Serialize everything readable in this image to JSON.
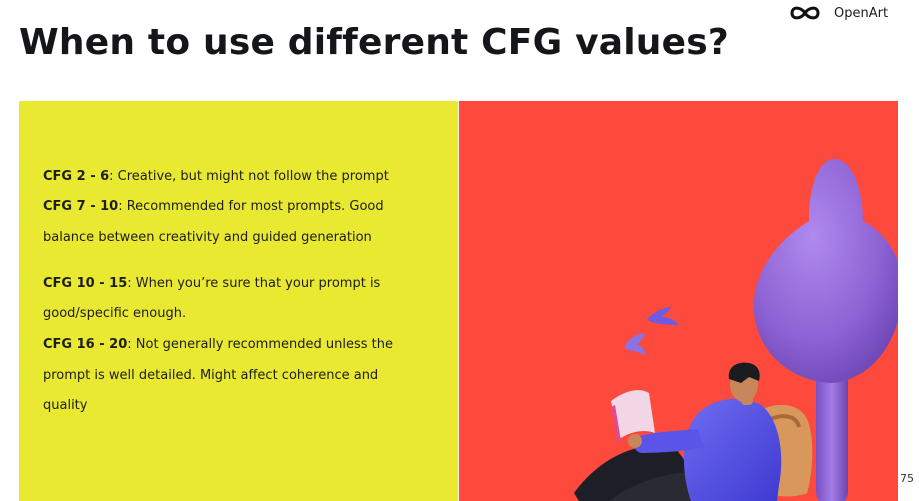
{
  "header": {
    "title": "When to use different CFG values?",
    "brand": {
      "name": "OpenArt",
      "logo_icon": "infinity-logo-icon"
    }
  },
  "content": {
    "items": [
      {
        "label": "CFG 2 - 6",
        "text": ": Creative, but might not follow the prompt"
      },
      {
        "label": "CFG 7 - 10",
        "text": ": Recommended for most prompts. Good",
        "continuation": "balance between creativity and guided generation"
      },
      {
        "label": "CFG 10 - 15",
        "text": ": When you’re sure that your prompt is",
        "continuation": "good/specific enough."
      },
      {
        "label": "CFG 16 - 20",
        "text": ": Not generally recommended unless the",
        "continuation_lines": [
          "prompt is well detailed. Might affect coherence and",
          "quality"
        ]
      }
    ]
  },
  "illustration": {
    "subject": "person-reading-under-tree-illustration",
    "colors": {
      "background": "#fe4a3c",
      "tree": "#8e63d4",
      "hoodie": "#5a55e8",
      "backpack": "#d8985c",
      "birds": "#6d5be0"
    }
  },
  "colors": {
    "left_panel": "#e9e932",
    "right_panel": "#fe4a3c",
    "title": "#15161a"
  },
  "footer": {
    "page_number": "75"
  }
}
